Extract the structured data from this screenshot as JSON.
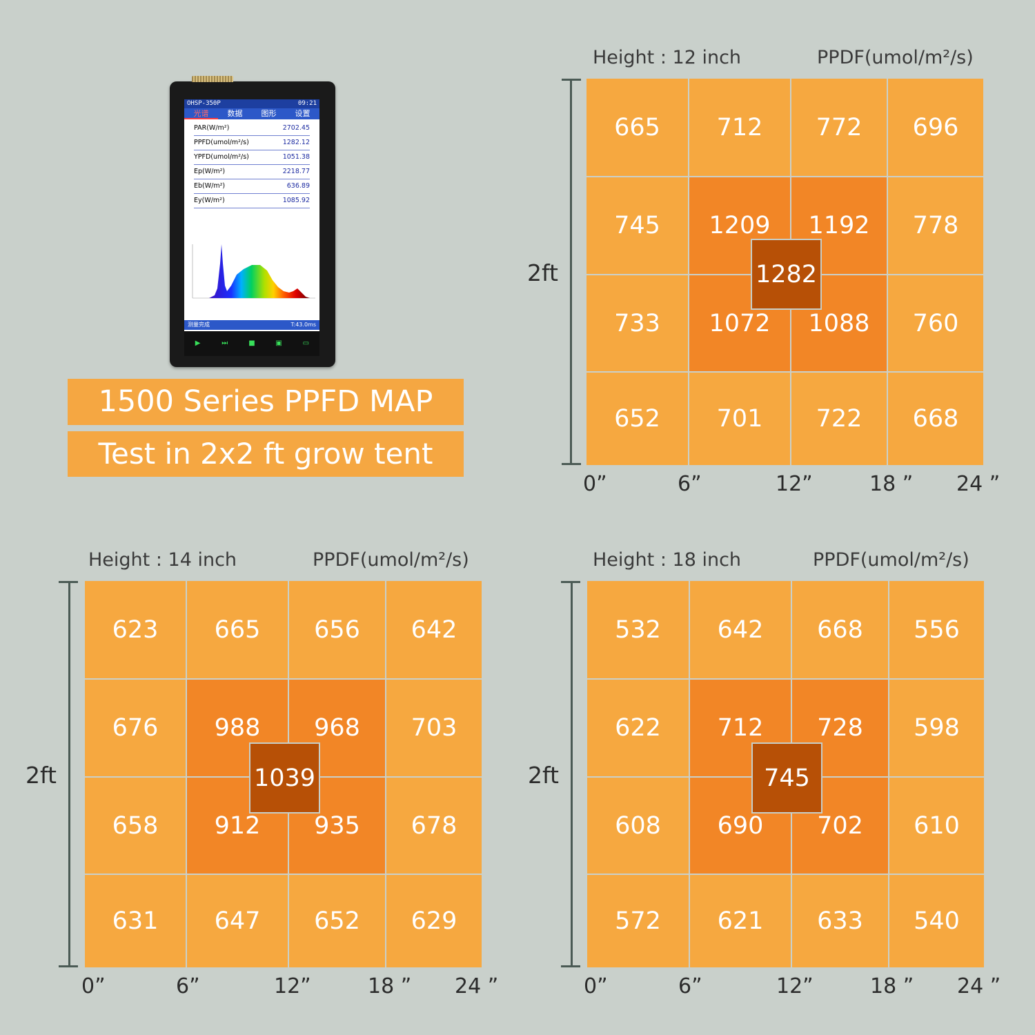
{
  "device": {
    "model": "OHSP-350P",
    "time": "09:21",
    "tabs": [
      "光谱",
      "数据",
      "图形",
      "设置"
    ],
    "readings": [
      {
        "label": "PAR(W/m²)",
        "value": "2702.45"
      },
      {
        "label": "PPFD(umol/m²/s)",
        "value": "1282.12"
      },
      {
        "label": "YPFD(umol/m²/s)",
        "value": "1051.38"
      },
      {
        "label": "Ep(W/m²)",
        "value": "2218.77"
      },
      {
        "label": "Eb(W/m²)",
        "value": "636.89"
      },
      {
        "label": "Ey(W/m²)",
        "value": "1085.92"
      }
    ],
    "footer_status": "测量完成",
    "footer_time": "T:43.0ms",
    "buttons": [
      "连续",
      "单次",
      "停止",
      "保存",
      "打开"
    ]
  },
  "title": "1500 Series PPFD MAP",
  "subtitle": "Test in 2x2 ft grow tent",
  "colors": {
    "light": "#f6a840",
    "dark": "#f28626",
    "center": "#b75006",
    "banner": "#f5a742"
  },
  "maps": [
    {
      "height_label": "Height : 12 inch",
      "unit_label": "PPDF(umol/m²/s)",
      "side_label": "2ft",
      "x_labels": [
        "0”",
        "6”",
        "12”",
        "18 ”",
        "24 ”"
      ],
      "rows": [
        [
          "665",
          "712",
          "772",
          "696"
        ],
        [
          "745",
          "1209",
          "1192",
          "778"
        ],
        [
          "733",
          "1072",
          "1088",
          "760"
        ],
        [
          "652",
          "701",
          "722",
          "668"
        ]
      ],
      "center": "1282"
    },
    {
      "height_label": "Height : 14 inch",
      "unit_label": "PPDF(umol/m²/s)",
      "side_label": "2ft",
      "x_labels": [
        "0”",
        "6”",
        "12”",
        "18 ”",
        "24 ”"
      ],
      "rows": [
        [
          "623",
          "665",
          "656",
          "642"
        ],
        [
          "676",
          "988",
          "968",
          "703"
        ],
        [
          "658",
          "912",
          "935",
          "678"
        ],
        [
          "631",
          "647",
          "652",
          "629"
        ]
      ],
      "center": "1039"
    },
    {
      "height_label": "Height : 18 inch",
      "unit_label": "PPDF(umol/m²/s)",
      "side_label": "2ft",
      "x_labels": [
        "0”",
        "6”",
        "12”",
        "18 ”",
        "24 ”"
      ],
      "rows": [
        [
          "532",
          "642",
          "668",
          "556"
        ],
        [
          "622",
          "712",
          "728",
          "598"
        ],
        [
          "608",
          "690",
          "702",
          "610"
        ],
        [
          "572",
          "621",
          "633",
          "540"
        ]
      ],
      "center": "745"
    }
  ]
}
